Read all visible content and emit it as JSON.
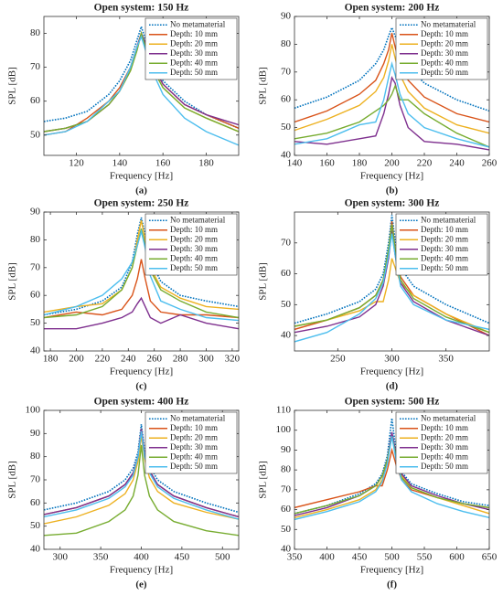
{
  "chart_data": [
    {
      "type": "line",
      "title": "Open system: 150 Hz",
      "x_label": "Frequency [Hz]",
      "y_label": "SPL [dB]",
      "caption": "(a)",
      "legend": "upper right",
      "x": [
        105,
        115,
        125,
        135,
        140,
        145,
        148,
        150,
        152,
        155,
        160,
        170,
        180,
        195
      ],
      "xlim": [
        105,
        195
      ],
      "xticks": [
        120,
        140,
        160,
        180
      ],
      "ylim": [
        44,
        85
      ],
      "yticks": [
        50,
        60,
        70,
        80
      ],
      "series": [
        {
          "name": "No metamaterial",
          "color": "#0072bd",
          "dash": "dotted",
          "values": [
            54,
            55,
            57,
            62,
            66,
            72,
            78,
            82,
            78,
            72,
            66,
            60,
            56,
            52
          ]
        },
        {
          "name": "Depth: 10 mm",
          "color": "#d95319",
          "values": [
            50,
            51,
            55,
            60,
            64,
            70,
            76,
            80,
            77,
            71,
            65,
            59,
            56,
            52
          ]
        },
        {
          "name": "Depth: 20 mm",
          "color": "#edb120",
          "values": [
            51,
            52,
            54,
            59,
            63,
            69,
            75,
            80,
            76,
            70,
            64,
            58,
            55,
            51
          ]
        },
        {
          "name": "Depth: 30 mm",
          "color": "#7e2f8e",
          "values": [
            51,
            52,
            54,
            59,
            63,
            70,
            76,
            80,
            77,
            71,
            65,
            59,
            56,
            53
          ]
        },
        {
          "name": "Depth: 40 mm",
          "color": "#77ac30",
          "values": [
            51,
            52,
            54,
            59,
            63,
            69,
            75,
            80,
            76,
            70,
            64,
            58,
            55,
            51
          ]
        },
        {
          "name": "Depth: 50 mm",
          "color": "#4dbeee",
          "values": [
            50,
            51,
            54,
            60,
            63,
            70,
            76,
            79,
            75,
            69,
            62,
            55,
            51,
            47
          ]
        }
      ]
    },
    {
      "type": "line",
      "title": "Open system: 200 Hz",
      "x_label": "Frequency [Hz]",
      "y_label": "SPL [dB]",
      "caption": "(b)",
      "legend": "upper right",
      "x": [
        140,
        160,
        180,
        190,
        195,
        198,
        200,
        202,
        205,
        210,
        220,
        240,
        260
      ],
      "xlim": [
        140,
        260
      ],
      "xticks": [
        140,
        160,
        180,
        200,
        220,
        240,
        260
      ],
      "ylim": [
        40,
        90
      ],
      "yticks": [
        40,
        50,
        60,
        70,
        80,
        90
      ],
      "series": [
        {
          "name": "No metamaterial",
          "color": "#0072bd",
          "dash": "dotted",
          "values": [
            57,
            61,
            67,
            73,
            78,
            83,
            86,
            83,
            78,
            72,
            66,
            60,
            56
          ]
        },
        {
          "name": "Depth: 10 mm",
          "color": "#d95319",
          "values": [
            52,
            56,
            62,
            67,
            73,
            78,
            84,
            79,
            73,
            67,
            61,
            55,
            52
          ]
        },
        {
          "name": "Depth: 20 mm",
          "color": "#edb120",
          "values": [
            49,
            53,
            58,
            63,
            68,
            74,
            80,
            75,
            69,
            63,
            57,
            51,
            48
          ]
        },
        {
          "name": "Depth: 30 mm",
          "color": "#7e2f8e",
          "values": [
            45,
            44,
            46,
            47,
            55,
            62,
            68,
            66,
            58,
            50,
            45,
            44,
            42
          ]
        },
        {
          "name": "Depth: 40 mm",
          "color": "#77ac30",
          "values": [
            46,
            48,
            52,
            56,
            58,
            60,
            62,
            65,
            60,
            60,
            55,
            48,
            43
          ]
        },
        {
          "name": "Depth: 50 mm",
          "color": "#4dbeee",
          "values": [
            44,
            46,
            51,
            52,
            60,
            68,
            73,
            69,
            62,
            55,
            50,
            46,
            43
          ]
        }
      ]
    },
    {
      "type": "line",
      "title": "Open system: 250 Hz",
      "x_label": "Frequency [Hz]",
      "y_label": "SPL [dB]",
      "caption": "(c)",
      "legend": "upper right",
      "x": [
        175,
        200,
        220,
        235,
        243,
        247,
        250,
        253,
        257,
        265,
        280,
        300,
        325
      ],
      "xlim": [
        175,
        325
      ],
      "xticks": [
        180,
        200,
        220,
        240,
        260,
        280,
        300,
        320
      ],
      "ylim": [
        40,
        90
      ],
      "yticks": [
        40,
        50,
        60,
        70,
        80,
        90
      ],
      "series": [
        {
          "name": "No metamaterial",
          "color": "#0072bd",
          "dash": "dotted",
          "values": [
            53,
            55,
            58,
            63,
            72,
            82,
            88,
            82,
            73,
            65,
            60,
            58,
            56
          ]
        },
        {
          "name": "Depth: 10 mm",
          "color": "#d95319",
          "values": [
            52,
            54,
            53,
            55,
            60,
            66,
            73,
            66,
            58,
            54,
            53,
            53,
            52
          ]
        },
        {
          "name": "Depth: 20 mm",
          "color": "#edb120",
          "values": [
            54,
            56,
            57,
            62,
            70,
            80,
            87,
            80,
            70,
            63,
            59,
            56,
            55
          ]
        },
        {
          "name": "Depth: 30 mm",
          "color": "#7e2f8e",
          "values": [
            48,
            48,
            50,
            52,
            54,
            57,
            59,
            56,
            52,
            50,
            53,
            50,
            48
          ]
        },
        {
          "name": "Depth: 40 mm",
          "color": "#77ac30",
          "values": [
            52,
            53,
            56,
            62,
            70,
            78,
            84,
            78,
            69,
            62,
            58,
            54,
            52
          ]
        },
        {
          "name": "Depth: 50 mm",
          "color": "#4dbeee",
          "values": [
            53,
            56,
            60,
            66,
            72,
            78,
            83,
            77,
            67,
            58,
            55,
            52,
            51
          ]
        }
      ]
    },
    {
      "type": "line",
      "title": "Open system: 300 Hz",
      "x_label": "Frequency [Hz]",
      "y_label": "SPL [dB]",
      "caption": "(d)",
      "legend": "upper right",
      "x": [
        210,
        240,
        270,
        285,
        292,
        297,
        300,
        303,
        308,
        320,
        350,
        390
      ],
      "xlim": [
        210,
        390
      ],
      "xticks": [
        250,
        300,
        350
      ],
      "ylim": [
        35,
        80
      ],
      "yticks": [
        40,
        50,
        60,
        70
      ],
      "series": [
        {
          "name": "No metamaterial",
          "color": "#0072bd",
          "dash": "dotted",
          "values": [
            44,
            47,
            51,
            55,
            60,
            70,
            79,
            71,
            62,
            56,
            50,
            44
          ]
        },
        {
          "name": "Depth: 10 mm",
          "color": "#d95319",
          "values": [
            42,
            45,
            49,
            53,
            58,
            67,
            77,
            68,
            59,
            53,
            47,
            40
          ]
        },
        {
          "name": "Depth: 20 mm",
          "color": "#edb120",
          "values": [
            43,
            45,
            48,
            51,
            51,
            58,
            65,
            62,
            57,
            53,
            47,
            41
          ]
        },
        {
          "name": "Depth: 30 mm",
          "color": "#7e2f8e",
          "values": [
            41,
            43,
            46,
            50,
            56,
            65,
            74,
            66,
            57,
            51,
            45,
            40
          ]
        },
        {
          "name": "Depth: 40 mm",
          "color": "#77ac30",
          "values": [
            43,
            45,
            49,
            53,
            58,
            68,
            76,
            68,
            58,
            52,
            46,
            41
          ]
        },
        {
          "name": "Depth: 50 mm",
          "color": "#4dbeee",
          "values": [
            38,
            41,
            47,
            52,
            57,
            66,
            73,
            66,
            56,
            50,
            45,
            42
          ]
        }
      ]
    },
    {
      "type": "line",
      "title": "Open system: 400 Hz",
      "x_label": "Frequency [Hz]",
      "y_label": "SPL [dB]",
      "caption": "(e)",
      "legend": "upper right",
      "x": [
        280,
        320,
        360,
        380,
        390,
        396,
        400,
        404,
        410,
        420,
        440,
        480,
        520
      ],
      "xlim": [
        280,
        520
      ],
      "xticks": [
        300,
        350,
        400,
        450,
        500
      ],
      "ylim": [
        40,
        100
      ],
      "yticks": [
        40,
        50,
        60,
        70,
        80,
        90,
        100
      ],
      "series": [
        {
          "name": "No metamaterial",
          "color": "#0072bd",
          "dash": "dotted",
          "values": [
            57,
            60,
            65,
            70,
            75,
            82,
            94,
            83,
            76,
            70,
            65,
            60,
            56
          ]
        },
        {
          "name": "Depth: 10 mm",
          "color": "#d95319",
          "values": [
            55,
            58,
            63,
            68,
            73,
            80,
            92,
            81,
            74,
            68,
            63,
            58,
            54
          ]
        },
        {
          "name": "Depth: 20 mm",
          "color": "#edb120",
          "values": [
            51,
            54,
            59,
            64,
            70,
            78,
            89,
            79,
            71,
            65,
            60,
            56,
            53
          ]
        },
        {
          "name": "Depth: 30 mm",
          "color": "#7e2f8e",
          "values": [
            55,
            58,
            63,
            68,
            73,
            80,
            92,
            81,
            74,
            68,
            63,
            58,
            54
          ]
        },
        {
          "name": "Depth: 40 mm",
          "color": "#77ac30",
          "values": [
            46,
            47,
            52,
            57,
            63,
            72,
            85,
            72,
            63,
            57,
            52,
            48,
            46
          ]
        },
        {
          "name": "Depth: 50 mm",
          "color": "#4dbeee",
          "values": [
            54,
            57,
            62,
            67,
            72,
            80,
            91,
            80,
            73,
            67,
            62,
            57,
            53
          ]
        }
      ]
    },
    {
      "type": "line",
      "title": "Open system: 500 Hz",
      "x_label": "Frequency [Hz]",
      "y_label": "SPL [dB]",
      "caption": "(f)",
      "legend": "upper right",
      "x": [
        350,
        400,
        450,
        475,
        485,
        493,
        500,
        507,
        515,
        530,
        570,
        610,
        650
      ],
      "xlim": [
        350,
        650
      ],
      "xticks": [
        350,
        400,
        450,
        500,
        550,
        600,
        650
      ],
      "ylim": [
        40,
        110
      ],
      "yticks": [
        40,
        50,
        60,
        70,
        80,
        90,
        100,
        110
      ],
      "series": [
        {
          "name": "No metamaterial",
          "color": "#0072bd",
          "dash": "dotted",
          "values": [
            58,
            62,
            68,
            73,
            78,
            87,
            106,
            88,
            79,
            73,
            68,
            64,
            62
          ]
        },
        {
          "name": "Depth: 10 mm",
          "color": "#d95319",
          "values": [
            61,
            65,
            69,
            72,
            72,
            80,
            90,
            82,
            75,
            70,
            66,
            63,
            61
          ]
        },
        {
          "name": "Depth: 20 mm",
          "color": "#edb120",
          "values": [
            56,
            60,
            65,
            70,
            75,
            84,
            98,
            86,
            77,
            71,
            66,
            62,
            58
          ]
        },
        {
          "name": "Depth: 30 mm",
          "color": "#7e2f8e",
          "values": [
            57,
            61,
            67,
            72,
            77,
            85,
            99,
            87,
            78,
            72,
            67,
            63,
            60
          ]
        },
        {
          "name": "Depth: 40 mm",
          "color": "#77ac30",
          "values": [
            58,
            62,
            67,
            72,
            77,
            85,
            97,
            86,
            76,
            71,
            66,
            63,
            61
          ]
        },
        {
          "name": "Depth: 50 mm",
          "color": "#4dbeee",
          "values": [
            55,
            59,
            64,
            69,
            74,
            83,
            97,
            84,
            75,
            69,
            63,
            59,
            56
          ]
        }
      ]
    }
  ]
}
